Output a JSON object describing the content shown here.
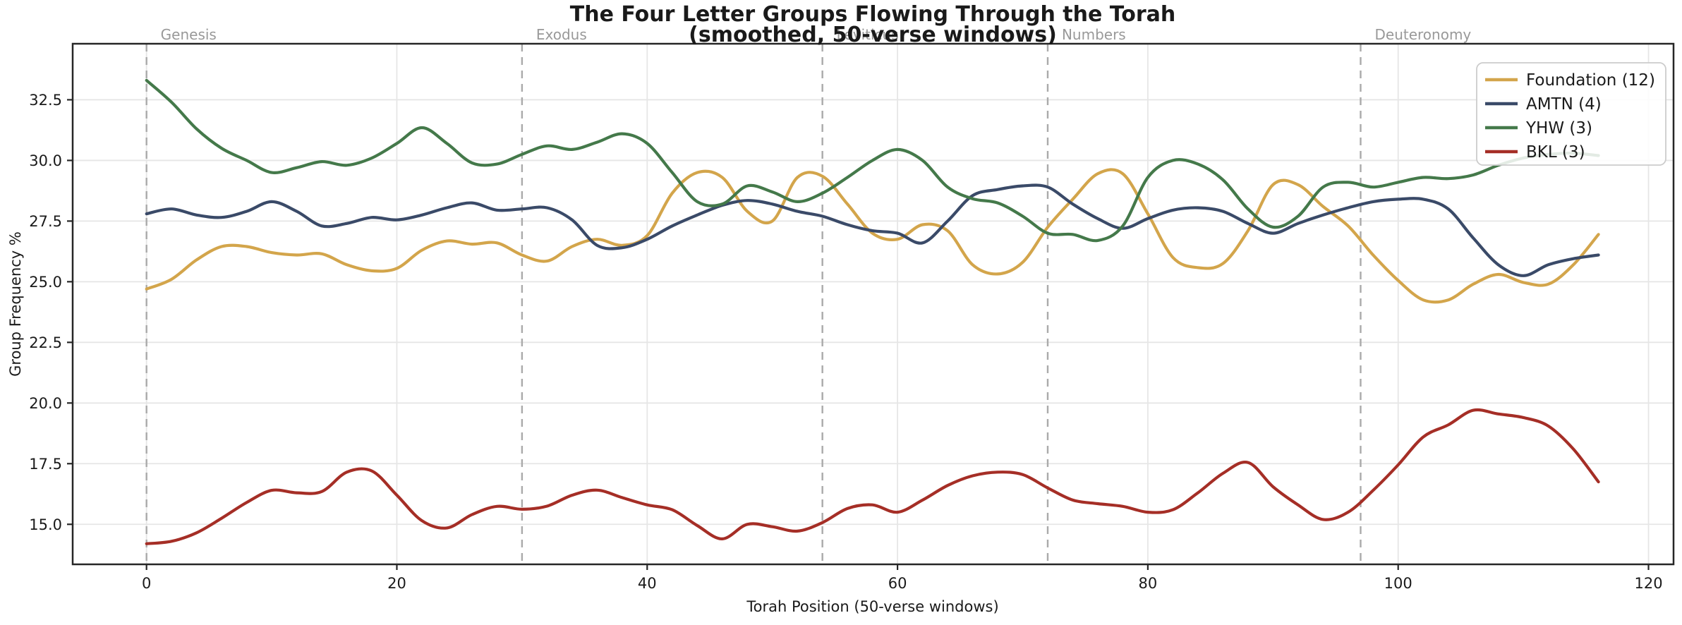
{
  "title": {
    "line1": "The Four Letter Groups Flowing Through the Torah",
    "line2": "(smoothed, 50-verse windows)"
  },
  "axes": {
    "xlabel": "Torah Position (50-verse windows)",
    "ylabel": "Group Frequency %",
    "x_ticks": [
      0,
      20,
      40,
      60,
      80,
      100,
      120
    ],
    "y_ticks": [
      15.0,
      17.5,
      20.0,
      22.5,
      25.0,
      27.5,
      30.0,
      32.5
    ]
  },
  "chart_data": {
    "type": "line",
    "title": "The Four Letter Groups Flowing Through the Torah (smoothed, 50-verse windows)",
    "xlabel": "Torah Position (50-verse windows)",
    "ylabel": "Group Frequency %",
    "xlim": [
      -5.9,
      122.0
    ],
    "ylim": [
      13.35,
      34.81
    ],
    "grid": true,
    "legend_position": "upper right",
    "book_boundaries": [
      {
        "name": "Genesis",
        "x": 0
      },
      {
        "name": "Exodus",
        "x": 30
      },
      {
        "name": "Leviticus",
        "x": 54
      },
      {
        "name": "Numbers",
        "x": 72
      },
      {
        "name": "Deuteronomy",
        "x": 97
      }
    ],
    "x": [
      0,
      2,
      4,
      6,
      8,
      10,
      12,
      14,
      16,
      18,
      20,
      22,
      24,
      26,
      28,
      30,
      32,
      34,
      36,
      38,
      40,
      42,
      44,
      46,
      48,
      50,
      52,
      54,
      56,
      58,
      60,
      62,
      64,
      66,
      68,
      70,
      72,
      74,
      76,
      78,
      80,
      82,
      84,
      86,
      88,
      90,
      92,
      94,
      96,
      98,
      100,
      102,
      104,
      106,
      108,
      110,
      112,
      114,
      116
    ],
    "series": [
      {
        "name": "Foundation (12)",
        "color": "#D3A54B",
        "values": [
          24.7,
          25.1,
          25.9,
          26.45,
          26.45,
          26.2,
          26.1,
          26.15,
          25.7,
          25.45,
          25.55,
          26.3,
          26.68,
          26.55,
          26.6,
          26.1,
          25.85,
          26.45,
          26.75,
          26.5,
          26.9,
          28.65,
          29.5,
          29.3,
          27.9,
          27.5,
          29.3,
          29.35,
          28.2,
          27.0,
          26.75,
          27.35,
          27.1,
          25.7,
          25.32,
          25.8,
          27.25,
          28.4,
          29.45,
          29.45,
          27.8,
          26.0,
          25.58,
          25.75,
          27.1,
          29.0,
          29.0,
          28.1,
          27.3,
          26.1,
          25.05,
          24.25,
          24.25,
          24.9,
          25.3,
          24.97,
          24.9,
          25.7,
          26.95
        ]
      },
      {
        "name": "AMTN (4)",
        "color": "#3A4A68",
        "values": [
          27.8,
          28.0,
          27.75,
          27.65,
          27.9,
          28.3,
          27.9,
          27.3,
          27.4,
          27.65,
          27.55,
          27.75,
          28.05,
          28.25,
          27.95,
          28.0,
          28.05,
          27.55,
          26.5,
          26.4,
          26.75,
          27.3,
          27.75,
          28.15,
          28.35,
          28.2,
          27.9,
          27.7,
          27.35,
          27.1,
          27.0,
          26.6,
          27.5,
          28.55,
          28.8,
          28.95,
          28.9,
          28.2,
          27.6,
          27.2,
          27.6,
          27.95,
          28.05,
          27.9,
          27.4,
          27.0,
          27.4,
          27.75,
          28.05,
          28.3,
          28.4,
          28.4,
          28.0,
          26.8,
          25.7,
          25.25,
          25.7,
          25.95,
          26.1
        ]
      },
      {
        "name": "YHW (3)",
        "color": "#44794A",
        "values": [
          33.3,
          32.4,
          31.3,
          30.5,
          30.0,
          29.5,
          29.7,
          29.95,
          29.8,
          30.1,
          30.7,
          31.35,
          30.7,
          29.9,
          29.85,
          30.25,
          30.6,
          30.45,
          30.75,
          31.1,
          30.7,
          29.5,
          28.3,
          28.2,
          28.95,
          28.7,
          28.3,
          28.65,
          29.3,
          30.0,
          30.45,
          30.0,
          28.9,
          28.42,
          28.25,
          27.7,
          27.0,
          26.95,
          26.7,
          27.3,
          29.3,
          30.0,
          29.85,
          29.2,
          28.0,
          27.25,
          27.7,
          28.9,
          29.1,
          28.9,
          29.1,
          29.3,
          29.25,
          29.4,
          29.8,
          30.1,
          30.25,
          30.3,
          30.2
        ]
      },
      {
        "name": "BKL (3)",
        "color": "#A52E26",
        "values": [
          14.2,
          14.3,
          14.65,
          15.25,
          15.9,
          16.4,
          16.3,
          16.35,
          17.15,
          17.2,
          16.2,
          15.15,
          14.85,
          15.4,
          15.74,
          15.62,
          15.75,
          16.2,
          16.41,
          16.1,
          15.8,
          15.6,
          14.95,
          14.4,
          15.0,
          14.9,
          14.72,
          15.07,
          15.65,
          15.8,
          15.5,
          16.0,
          16.6,
          17.0,
          17.15,
          17.05,
          16.5,
          16.0,
          15.85,
          15.74,
          15.5,
          15.6,
          16.3,
          17.1,
          17.55,
          16.55,
          15.8,
          15.2,
          15.5,
          16.4,
          17.45,
          18.6,
          19.1,
          19.7,
          19.55,
          19.4,
          19.05,
          18.1,
          16.75
        ]
      }
    ]
  },
  "style": {
    "grid_color": "#e6e6e6",
    "boundary_line_color": "#aaaaaa",
    "book_label_color": "#999999",
    "spine_color": "#262626",
    "legend_border_color": "#cccccc"
  }
}
